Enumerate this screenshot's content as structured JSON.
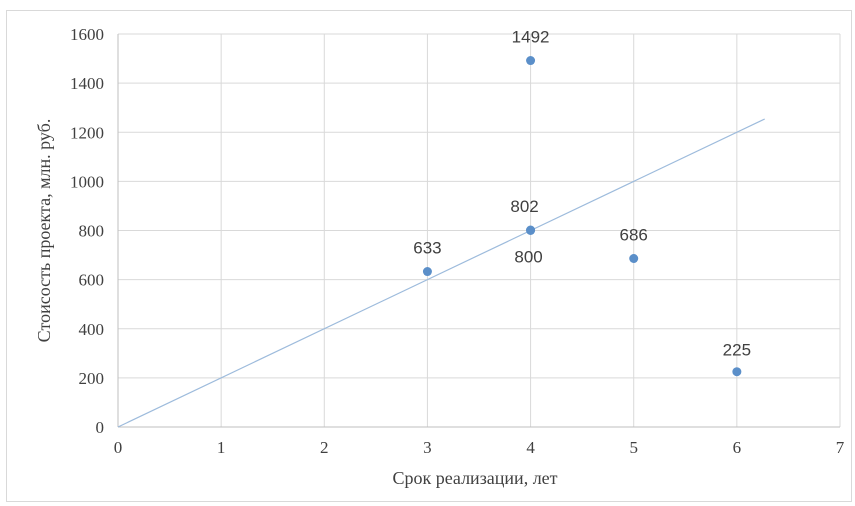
{
  "chart_data": {
    "type": "scatter",
    "title": "",
    "xlabel": "Срок реализации,  лет",
    "ylabel": "Стоисость проекта, млн. руб.",
    "xlim": [
      0,
      7
    ],
    "ylim": [
      0,
      1600
    ],
    "x_ticks": [
      0,
      1,
      2,
      3,
      4,
      5,
      6,
      7
    ],
    "y_ticks": [
      0,
      200,
      400,
      600,
      800,
      1000,
      1200,
      1400,
      1600
    ],
    "grid": true,
    "legend": "none",
    "series": [
      {
        "points": [
          {
            "x": 3,
            "y": 633,
            "label": "633"
          },
          {
            "x": 4,
            "y": 1492,
            "label": "1492"
          },
          {
            "x": 4,
            "y": 802,
            "label": "802"
          },
          {
            "x": 4,
            "y": 800,
            "label": "800"
          },
          {
            "x": 5,
            "y": 686,
            "label": "686"
          },
          {
            "x": 6,
            "y": 225,
            "label": "225"
          }
        ],
        "color": "#5b8fc9"
      }
    ],
    "trendline": {
      "type": "linear",
      "intercept": 0,
      "slope": 200,
      "x_range": [
        0,
        6.27
      ],
      "color": "#9dbbdc"
    },
    "colors": {
      "grid": "#d9d9d9",
      "axis": "#bfbfbf",
      "text": "#404040"
    }
  }
}
